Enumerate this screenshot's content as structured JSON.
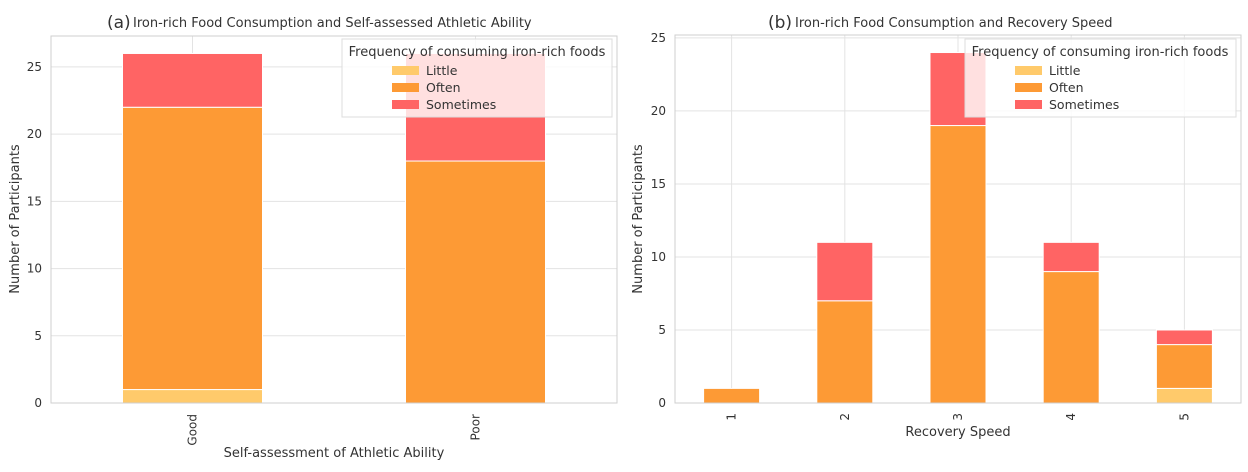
{
  "colors": {
    "Little": "#FFCA6B",
    "Often": "#FD9A35",
    "Sometimes": "#FF6464"
  },
  "chart_data": [
    {
      "type": "bar",
      "stacked": true,
      "title_prefix": "(a)",
      "title": "Iron-rich Food Consumption and Self-assessed Athletic Ability",
      "xlabel": "Self-assessment of Athletic Ability",
      "ylabel": "Number of Participants",
      "categories": [
        "Good",
        "Poor"
      ],
      "series": [
        {
          "name": "Little",
          "values": [
            1,
            0
          ]
        },
        {
          "name": "Often",
          "values": [
            21,
            18
          ]
        },
        {
          "name": "Sometimes",
          "values": [
            4,
            8
          ]
        }
      ],
      "ylim": [
        0,
        27.3
      ],
      "yticks": [
        0,
        5,
        10,
        15,
        20,
        25
      ],
      "grid": true,
      "legend_title": "Frequency of consuming iron-rich foods",
      "legend_position": "top-right"
    },
    {
      "type": "bar",
      "stacked": true,
      "title_prefix": "(b)",
      "title": "Iron-rich Food Consumption and Recovery Speed",
      "xlabel": "Recovery Speed",
      "ylabel": "Number of Participants",
      "categories": [
        "1",
        "2",
        "3",
        "4",
        "5"
      ],
      "series": [
        {
          "name": "Little",
          "values": [
            0,
            0,
            0,
            0,
            1
          ]
        },
        {
          "name": "Often",
          "values": [
            1,
            7,
            19,
            9,
            3
          ]
        },
        {
          "name": "Sometimes",
          "values": [
            0,
            4,
            5,
            2,
            1
          ]
        }
      ],
      "ylim": [
        0,
        25.2
      ],
      "yticks": [
        0,
        5,
        10,
        15,
        20,
        25
      ],
      "grid": true,
      "legend_title": "Frequency of consuming iron-rich foods",
      "legend_position": "top-right"
    }
  ]
}
